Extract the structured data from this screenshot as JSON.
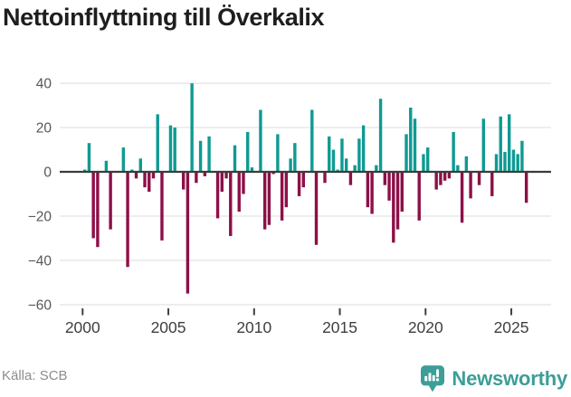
{
  "title": "Nettoinflyttning till Överkalix",
  "source": {
    "label": "Källa: SCB"
  },
  "branding": {
    "wordmark": "Newsworthy",
    "logo_icon": "newsworthy-chart-bubble-icon",
    "color": "#3c9e99"
  },
  "colors": {
    "background": "#ffffff",
    "title_text": "#1e1e1e",
    "axis_text": "#3f3f3f",
    "y_label_text": "#575757",
    "source_text": "#8d8d8d"
  },
  "chart_data": {
    "type": "bar",
    "title": "Nettoinflyttning till Överkalix",
    "frequency": "quarterly",
    "start": "2000-K1",
    "end": "2025-K4",
    "values": [
      1,
      13,
      -30,
      -34,
      0,
      5,
      -26,
      0,
      0,
      11,
      -43,
      1,
      -3,
      6,
      -7,
      -9,
      -3,
      26,
      -31,
      0,
      21,
      20,
      0,
      -8,
      -55,
      40,
      -5,
      14,
      -2,
      16,
      0,
      -21,
      -9,
      -3,
      -29,
      12,
      -18,
      -10,
      18,
      2,
      0,
      28,
      -26,
      -24,
      -1,
      17,
      -22,
      -16,
      6,
      13,
      -11,
      -7,
      0,
      28,
      -33,
      0,
      -5,
      16,
      10,
      1,
      15,
      6,
      -6,
      3,
      15,
      21,
      -16,
      -19,
      3,
      33,
      -6,
      -13,
      -32,
      -26,
      -18,
      17,
      29,
      24,
      -22,
      8,
      11,
      0,
      -8,
      -6,
      -4,
      -3,
      18,
      3,
      -23,
      7,
      -12,
      0,
      -6,
      24,
      0,
      -11,
      8,
      25,
      9,
      26,
      10,
      8,
      14,
      -14
    ],
    "x_ticks": [
      "2000",
      "2005",
      "2010",
      "2015",
      "2020",
      "2025"
    ],
    "y_ticks": [
      40,
      20,
      0,
      -20,
      -40,
      -60
    ],
    "ylim": [
      -62,
      44
    ],
    "xlabel": "",
    "ylabel": "",
    "legend": false,
    "grid": true,
    "positive_color": "#0f9a93",
    "negative_color": "#8d1048",
    "grid_color": "#e8e8e8",
    "axis_color": "#3b3b3b"
  }
}
